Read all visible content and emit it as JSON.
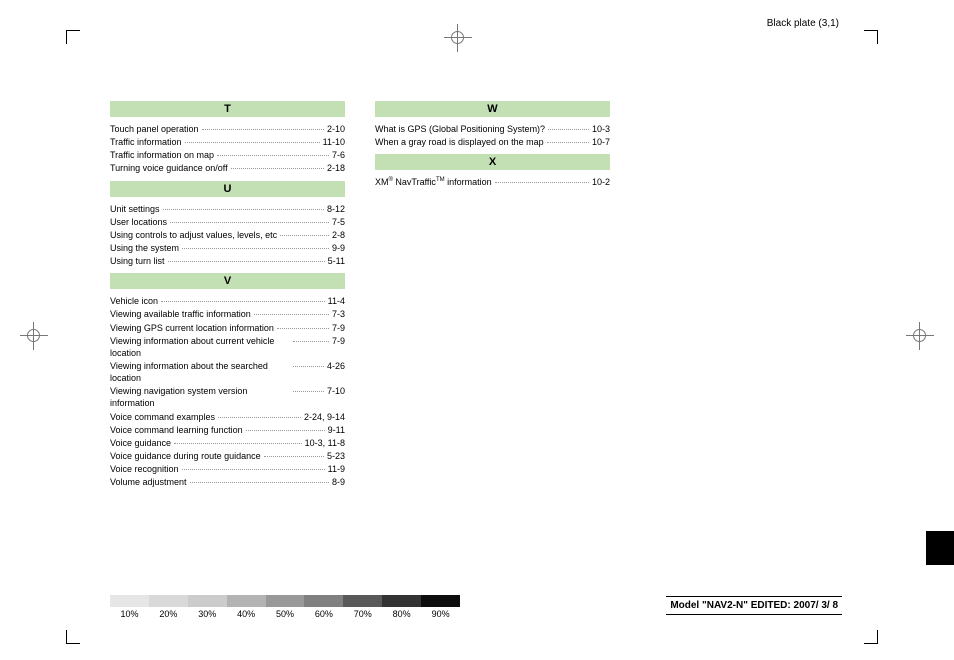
{
  "plate_label": "Black plate (3,1)",
  "sections_col1": [
    {
      "letter": "T",
      "entries": [
        {
          "label": "Touch panel operation",
          "page": "2-10"
        },
        {
          "label": "Traffic information",
          "page": "11-10"
        },
        {
          "label": "Traffic information on map",
          "page": "7-6"
        },
        {
          "label": "Turning voice guidance on/off",
          "page": "2-18"
        }
      ]
    },
    {
      "letter": "U",
      "entries": [
        {
          "label": "Unit settings",
          "page": "8-12"
        },
        {
          "label": "User locations",
          "page": "7-5"
        },
        {
          "label": "Using controls to adjust values, levels, etc",
          "page": "2-8"
        },
        {
          "label": "Using the system",
          "page": "9-9"
        },
        {
          "label": "Using turn list",
          "page": "5-11"
        }
      ]
    },
    {
      "letter": "V",
      "entries": [
        {
          "label": "Vehicle icon",
          "page": "11-4"
        },
        {
          "label": "Viewing available traffic information",
          "page": "7-3"
        },
        {
          "label": "Viewing GPS current location information",
          "page": "7-9"
        },
        {
          "label": "Viewing information about current vehicle location",
          "page": "7-9",
          "wrap": true
        },
        {
          "label": "Viewing information about the searched location",
          "page": "4-26",
          "wrap": true
        },
        {
          "label": "Viewing navigation system version information",
          "page": "7-10",
          "wrap": true
        },
        {
          "label": "Voice command examples",
          "page": "2-24, 9-14"
        },
        {
          "label": "Voice command learning function",
          "page": "9-11"
        },
        {
          "label": "Voice guidance",
          "page": "10-3, 11-8"
        },
        {
          "label": "Voice guidance during route guidance",
          "page": "5-23"
        },
        {
          "label": "Voice recognition",
          "page": "11-9"
        },
        {
          "label": "Volume adjustment",
          "page": "8-9"
        }
      ]
    }
  ],
  "sections_col2": [
    {
      "letter": "W",
      "entries": [
        {
          "label": "What is GPS (Global Positioning System)?",
          "page": "10-3"
        },
        {
          "label": "When a gray road is displayed on the map",
          "page": "10-7"
        }
      ]
    },
    {
      "letter": "X",
      "entries": [
        {
          "label": "XM® NavTraffic™ information",
          "page": "10-2",
          "special": "xm"
        }
      ]
    }
  ],
  "gradient": {
    "labels": [
      "10%",
      "20%",
      "30%",
      "40%",
      "50%",
      "60%",
      "70%",
      "80%",
      "90%"
    ],
    "shades": [
      "#e6e6e6",
      "#d9d9d9",
      "#cccccc",
      "#b3b3b3",
      "#999999",
      "#808080",
      "#595959",
      "#333333",
      "#0d0d0d"
    ]
  },
  "model_text": "Model \"NAV2-N\"  EDITED: 2007/ 3/ 8",
  "colors": {
    "header_bg": "#c3e0b5",
    "text": "#000000",
    "page_bg": "#ffffff"
  }
}
